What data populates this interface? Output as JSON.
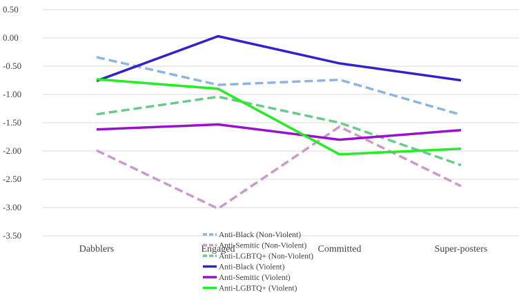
{
  "chart_data": {
    "type": "line",
    "categories": [
      "Dabblers",
      "Engaged",
      "Committed",
      "Super-posters"
    ],
    "ylim": [
      -3.5,
      0.5
    ],
    "yticks": [
      0.5,
      0.0,
      -0.5,
      -1.0,
      -1.5,
      -2.0,
      -2.5,
      -3.0,
      -3.5
    ],
    "ytick_labels": [
      "0.50",
      "0.00",
      "-0.50",
      "-1.00",
      "-1.50",
      "-2.00",
      "-2.50",
      "-3.00",
      "-3.50"
    ],
    "grid": true,
    "legend_position": "bottom-center",
    "series": [
      {
        "name": "Anti-Black (Non-Violent)",
        "values": [
          -0.34,
          -0.83,
          -0.74,
          -1.36
        ],
        "color": "#8db4e2",
        "style": "dashed"
      },
      {
        "name": "Anti-Semitic (Non-Violent)",
        "values": [
          -1.99,
          -3.02,
          -1.57,
          -2.62
        ],
        "color": "#cc99cc",
        "style": "dashed"
      },
      {
        "name": "Anti-LGBTQ+ (Non-Violent)",
        "values": [
          -1.35,
          -1.04,
          -1.5,
          -2.25
        ],
        "color": "#66cc88",
        "style": "dashed"
      },
      {
        "name": "Anti-Black (Violent)",
        "values": [
          -0.76,
          0.03,
          -0.45,
          -0.75
        ],
        "color": "#3322cc",
        "style": "solid"
      },
      {
        "name": "Anti-Semitic (Violent)",
        "values": [
          -1.62,
          -1.53,
          -1.8,
          -1.63
        ],
        "color": "#9911cc",
        "style": "solid"
      },
      {
        "name": "Anti-LGBTQ+ (Violent)",
        "values": [
          -0.73,
          -0.9,
          -2.06,
          -1.96
        ],
        "color": "#22ee22",
        "style": "solid"
      }
    ]
  }
}
